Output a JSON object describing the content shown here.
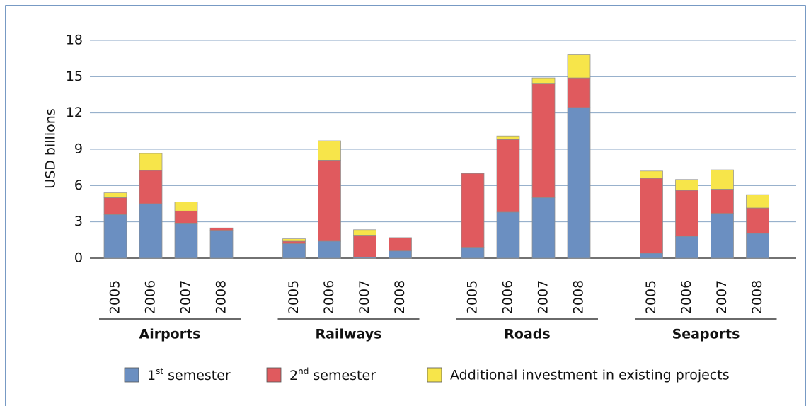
{
  "chart_data": {
    "type": "bar",
    "stacked": true,
    "y_label": "USD billions",
    "groups": [
      "Airports",
      "Railways",
      "Roads",
      "Seaports"
    ],
    "categories": [
      "2005",
      "2006",
      "2007",
      "2008",
      "2005",
      "2006",
      "2007",
      "2008",
      "2005",
      "2006",
      "2007",
      "2008",
      "2005",
      "2006",
      "2007",
      "2008"
    ],
    "series": [
      {
        "name": "1st semester",
        "color": "#6b8fc1",
        "values": [
          3.6,
          4.5,
          2.9,
          2.3,
          1.2,
          1.4,
          0.1,
          0.6,
          0.9,
          3.8,
          5.0,
          12.45,
          0.4,
          1.8,
          3.7,
          2.05
        ]
      },
      {
        "name": "2nd semester",
        "color": "#e05a5e",
        "values": [
          1.4,
          2.75,
          1.0,
          0.2,
          0.2,
          6.7,
          1.8,
          1.1,
          6.1,
          6.0,
          9.4,
          2.45,
          6.2,
          3.8,
          2.0,
          2.1
        ]
      },
      {
        "name": "Additional investment in existing projects",
        "color": "#f7e54a",
        "values": [
          0.4,
          1.4,
          0.75,
          0,
          0.2,
          1.6,
          0.45,
          0,
          0,
          0.3,
          0.5,
          1.9,
          0.6,
          0.9,
          1.6,
          1.1
        ]
      }
    ],
    "ylim": [
      0,
      18
    ],
    "yticks": [
      0,
      3,
      6,
      9,
      12,
      15,
      18
    ],
    "grid": true
  }
}
